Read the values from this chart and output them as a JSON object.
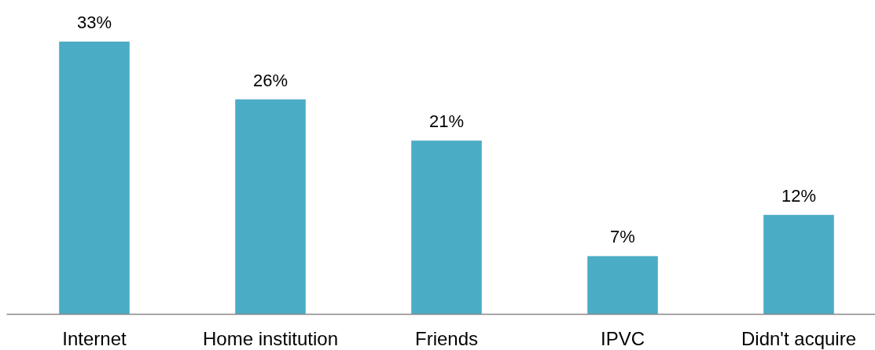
{
  "chart_data": {
    "type": "bar",
    "categories": [
      "Internet",
      "Home institution",
      "Friends",
      "IPVC",
      "Didn't acquire"
    ],
    "values": [
      33,
      26,
      21,
      7,
      12
    ],
    "value_labels": [
      "33%",
      "26%",
      "21%",
      "7%",
      "12%"
    ],
    "color": "#4bacc6",
    "tick_labels": "x"
  }
}
